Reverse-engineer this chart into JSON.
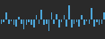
{
  "values": [
    -3,
    -2,
    5,
    -3,
    -1,
    -4,
    -5,
    2,
    -3,
    -7,
    -4,
    -2,
    -4,
    -6,
    3,
    -3,
    7,
    -4,
    -3,
    -8,
    5,
    -3,
    4,
    -6,
    -2,
    3,
    -5,
    10,
    -6,
    -3,
    -2,
    -5,
    3,
    -4,
    -1,
    -3,
    8,
    -5,
    -2,
    -4,
    -3,
    5
  ],
  "bar_color": "#4da6d9",
  "background_color": "#2a2a2a",
  "ylim": [
    -14,
    14
  ]
}
